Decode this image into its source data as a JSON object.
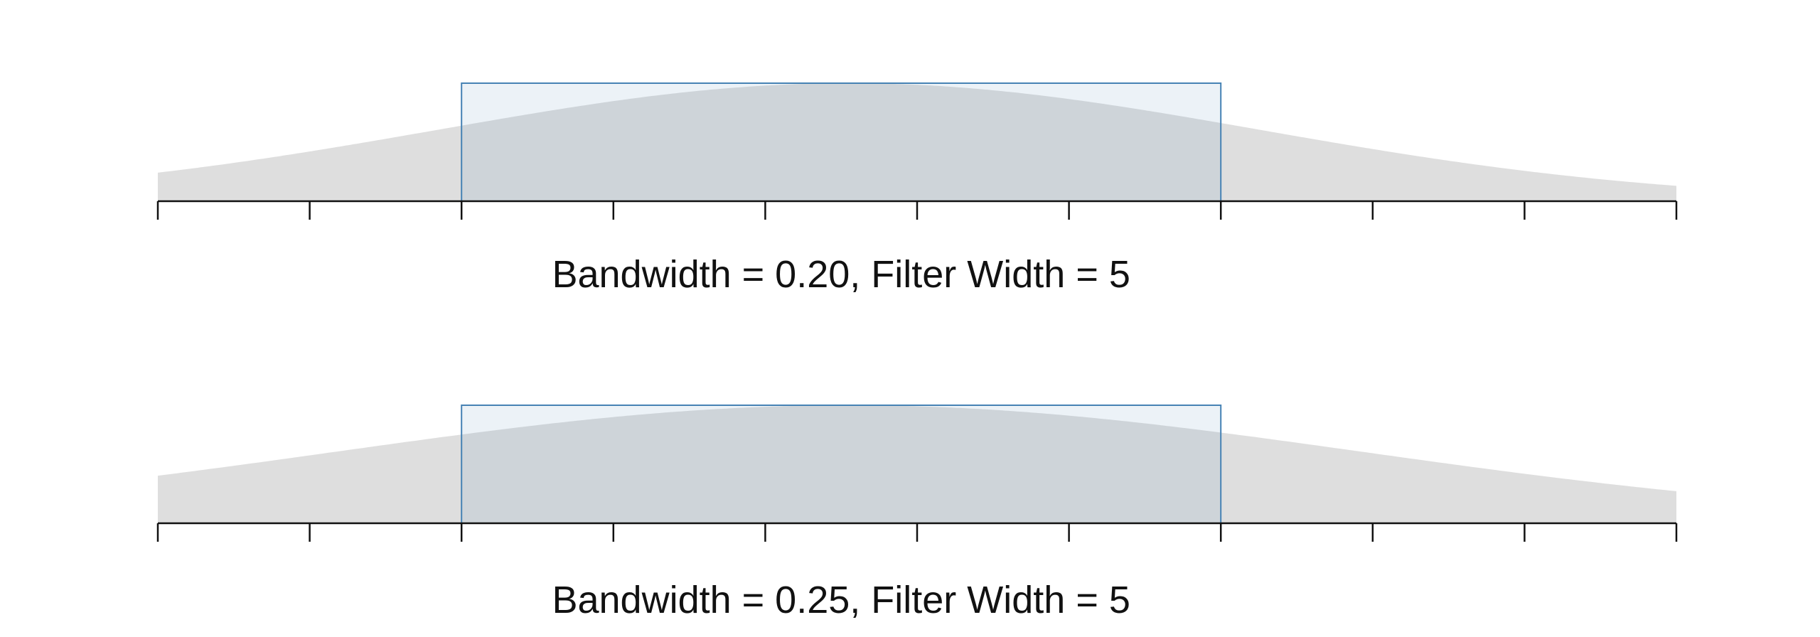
{
  "panels": [
    {
      "id": "top",
      "caption": "Bandwidth = 0.20, Filter Width = 5",
      "bandwidth": 0.2,
      "filter_width": 5,
      "axis_ticks": 11,
      "filter_start_tick": 2,
      "curve_peak_fraction": 0.455
    },
    {
      "id": "bottom",
      "caption": "Bandwidth = 0.25, Filter Width = 5",
      "bandwidth": 0.25,
      "filter_width": 5,
      "axis_ticks": 11,
      "filter_start_tick": 2,
      "curve_peak_fraction": 0.455
    }
  ],
  "colors": {
    "curve_fill": "#dedede",
    "filter_fill": "#4682b4",
    "filter_fill_opacity": 0.1,
    "filter_stroke": "#4682b4",
    "axis": "#111111"
  }
}
